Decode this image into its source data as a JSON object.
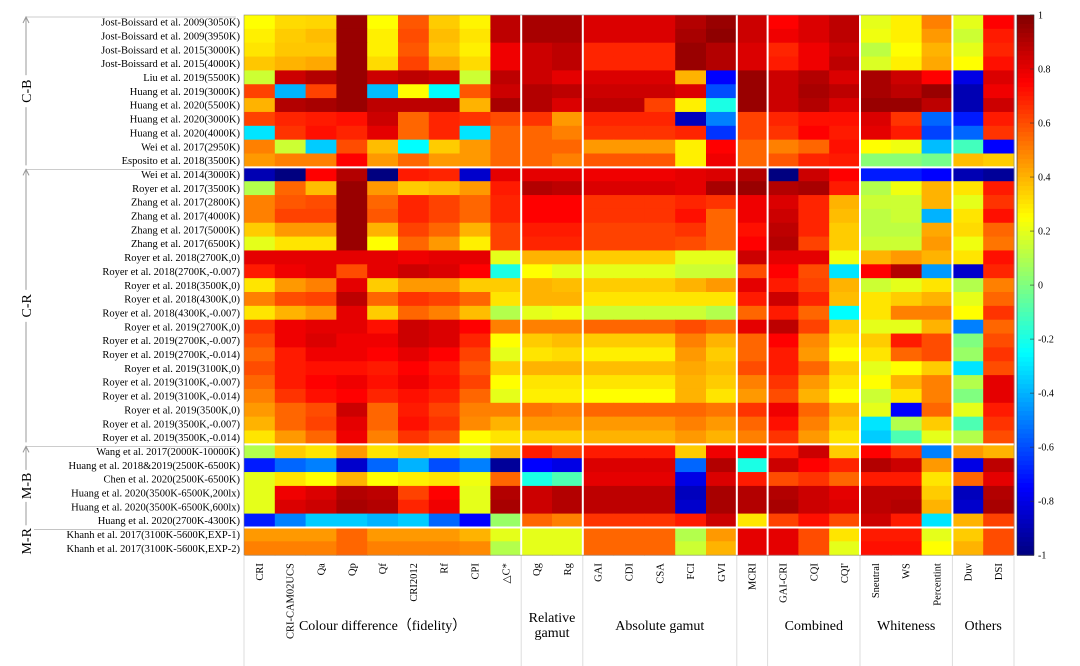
{
  "chart_data": {
    "type": "heatmap",
    "title": "",
    "rows": [
      "Jost-Boissard et al. 2009(3050K)",
      "Jost-Boissard et al. 2009(3950K)",
      "Jost-Boissard et al. 2015(3000K)",
      "Jost-Boissard et al. 2015(4000K)",
      "Liu et al. 2019(5500K)",
      "Huang et al. 2019(3000K)",
      "Huang et al. 2020(5500K)",
      "Huang et al. 2020(3000K)",
      "Huang et al. 2020(4000K)",
      "Wei et al. 2017(2950K)",
      "Esposito et al. 2018(3500K)",
      "Wei et al. 2014(3000K)",
      "Royer et al. 2017(3500K)",
      "Zhang et al. 2017(2800K)",
      "Zhang et al. 2017(4000K)",
      "Zhang et al. 2017(5000K)",
      "Zhang et al. 2017(6500K)",
      "Royer et al. 2018(2700K,0)",
      "Royer et al. 2018(2700K,-0.007)",
      "Royer et al. 2018(3500K,0)",
      "Royer et al. 2018(4300K,0)",
      "Royer et al. 2018(4300K,-0.007)",
      "Royer et al. 2019(2700K,0)",
      "Royer et al. 2019(2700K,-0.007)",
      "Royer et al. 2019(2700K,-0.014)",
      "Royer et al. 2019(3100K,0)",
      "Royer et al. 2019(3100K,-0.007)",
      "Royer et al. 2019(3100K,-0.014)",
      "Royer et al. 2019(3500K,0)",
      "Royer et al. 2019(3500K,-0.007)",
      "Royer et al. 2019(3500K,-0.014)",
      "Wang et al. 2017(2000K-10000K)",
      "Huang et al. 2018&2019(2500K-6500K)",
      "Chen et al. 2020(2500K-6500K)",
      "Huang et al. 2020(3500K-6500K,200lx)",
      "Huang et al. 2020(3500K-6500K,600lx)",
      "Huang et al. 2020(2700K-4300K)",
      "Khanh et al. 2017(3100K-5600K,EXP-1)",
      "Khanh et al. 2017(3100K-5600K,EXP-2)"
    ],
    "columns": [
      "CRI",
      "CRI-CAM02UCS",
      "Qa",
      "Qp",
      "Qf",
      "CRI2012",
      "Rf",
      "CPI",
      "△C*",
      "Qg",
      "Rg",
      "GAI",
      "CDI",
      "CSA",
      "FCI",
      "GVI",
      "MCRI",
      "GAI-CRI",
      "CQI",
      "CQI'",
      "Sneutral",
      "WS",
      "Percentint",
      "Duv",
      "DSI"
    ],
    "column_groups": [
      {
        "label": "Colour difference（fidelity）",
        "span": 9
      },
      {
        "label": "Relative gamut",
        "span": 2
      },
      {
        "label": "Absolute gamut",
        "span": 5
      },
      {
        "label": "",
        "span": 1
      },
      {
        "label": "Combined",
        "span": 3
      },
      {
        "label": "Whiteness",
        "span": 3
      },
      {
        "label": "Others",
        "span": 2
      }
    ],
    "row_groups": [
      {
        "label": "C-B",
        "span": 11
      },
      {
        "label": "C-R",
        "span": 20
      },
      {
        "label": "M-B",
        "span": 6
      },
      {
        "label": "M-R",
        "span": 2
      }
    ],
    "colorbar": {
      "min": -1,
      "max": 1,
      "ticks": [
        1,
        0.8,
        0.6,
        0.4,
        0.2,
        0,
        -0.2,
        -0.4,
        -0.6,
        -0.8,
        -1
      ],
      "colormap": "jet"
    },
    "values": [
      [
        0.25,
        0.32,
        0.33,
        0.95,
        0.25,
        0.58,
        0.35,
        0.27,
        0.88,
        0.92,
        0.92,
        0.82,
        0.82,
        0.82,
        0.9,
        0.95,
        0.85,
        0.75,
        0.82,
        0.88,
        0.2,
        0.28,
        0.5,
        0.2,
        0.75
      ],
      [
        0.28,
        0.35,
        0.38,
        0.95,
        0.28,
        0.6,
        0.38,
        0.3,
        0.88,
        0.92,
        0.92,
        0.82,
        0.82,
        0.82,
        0.92,
        0.97,
        0.85,
        0.78,
        0.82,
        0.88,
        0.22,
        0.28,
        0.45,
        0.15,
        0.7
      ],
      [
        0.3,
        0.36,
        0.36,
        0.95,
        0.28,
        0.58,
        0.36,
        0.28,
        0.78,
        0.85,
        0.88,
        0.68,
        0.68,
        0.68,
        0.95,
        0.9,
        0.82,
        0.68,
        0.78,
        0.85,
        0.12,
        0.25,
        0.4,
        0.2,
        0.68
      ],
      [
        0.36,
        0.4,
        0.42,
        0.95,
        0.32,
        0.62,
        0.42,
        0.32,
        0.78,
        0.85,
        0.88,
        0.68,
        0.68,
        0.68,
        0.95,
        0.9,
        0.82,
        0.7,
        0.78,
        0.88,
        0.18,
        0.28,
        0.42,
        0.25,
        0.72
      ],
      [
        0.15,
        0.85,
        0.9,
        0.95,
        0.85,
        0.88,
        0.85,
        0.15,
        0.88,
        0.85,
        0.8,
        0.82,
        0.82,
        0.82,
        0.4,
        -0.75,
        0.95,
        0.85,
        0.9,
        0.82,
        0.92,
        0.85,
        0.75,
        -0.8,
        0.82
      ],
      [
        0.62,
        -0.4,
        0.62,
        0.95,
        -0.38,
        0.25,
        -0.25,
        0.58,
        0.85,
        0.9,
        0.88,
        0.85,
        0.85,
        0.85,
        0.82,
        -0.6,
        0.95,
        0.85,
        0.92,
        0.88,
        0.92,
        0.88,
        0.95,
        -0.9,
        0.78
      ],
      [
        0.4,
        0.9,
        0.92,
        0.95,
        0.88,
        0.88,
        0.88,
        0.4,
        0.92,
        0.9,
        0.82,
        0.88,
        0.88,
        0.62,
        0.28,
        -0.2,
        0.95,
        0.85,
        0.9,
        0.82,
        0.95,
        0.95,
        0.88,
        -0.9,
        0.85
      ],
      [
        0.62,
        0.68,
        0.7,
        0.72,
        0.85,
        0.55,
        0.68,
        0.65,
        0.6,
        0.65,
        0.45,
        0.68,
        0.68,
        0.68,
        -0.88,
        -0.5,
        0.62,
        0.68,
        0.72,
        0.72,
        0.82,
        0.65,
        -0.55,
        -0.7,
        0.7
      ],
      [
        -0.3,
        0.65,
        0.72,
        0.68,
        0.8,
        0.55,
        0.68,
        -0.3,
        0.55,
        0.55,
        0.5,
        0.65,
        0.65,
        0.65,
        0.68,
        -0.65,
        0.62,
        0.65,
        0.75,
        0.7,
        0.8,
        0.7,
        -0.62,
        -0.55,
        0.65
      ],
      [
        0.5,
        0.15,
        -0.35,
        0.6,
        0.38,
        -0.25,
        0.35,
        0.45,
        0.55,
        0.55,
        0.55,
        0.45,
        0.45,
        0.45,
        0.28,
        0.75,
        0.55,
        0.5,
        0.55,
        0.72,
        0.25,
        0.22,
        -0.38,
        -0.12,
        -0.75
      ],
      [
        0.45,
        0.5,
        0.5,
        0.75,
        0.45,
        0.55,
        0.45,
        0.45,
        0.55,
        0.55,
        0.5,
        0.58,
        0.58,
        0.58,
        0.28,
        0.78,
        0.55,
        0.58,
        0.68,
        0.7,
        0.02,
        0.02,
        -0.02,
        0.38,
        0.35
      ],
      [
        -0.9,
        -1.0,
        0.75,
        0.9,
        -1.0,
        0.7,
        0.68,
        -0.85,
        0.8,
        0.8,
        0.8,
        0.78,
        0.78,
        0.78,
        0.8,
        0.82,
        0.9,
        -1.0,
        0.85,
        0.75,
        -0.7,
        -0.7,
        -0.75,
        -0.9,
        -0.95
      ],
      [
        0.1,
        0.55,
        0.38,
        0.95,
        0.45,
        0.35,
        0.38,
        0.45,
        0.7,
        0.9,
        0.88,
        0.82,
        0.82,
        0.82,
        0.8,
        0.92,
        0.95,
        0.9,
        0.92,
        0.7,
        0.1,
        0.22,
        0.4,
        0.3,
        0.7
      ],
      [
        0.5,
        0.58,
        0.6,
        0.95,
        0.55,
        0.68,
        0.62,
        0.55,
        0.68,
        0.75,
        0.75,
        0.65,
        0.65,
        0.65,
        0.68,
        0.65,
        0.78,
        0.82,
        0.68,
        0.4,
        0.15,
        0.15,
        0.4,
        0.2,
        0.65
      ],
      [
        0.5,
        0.62,
        0.62,
        0.95,
        0.58,
        0.68,
        0.62,
        0.55,
        0.68,
        0.75,
        0.75,
        0.65,
        0.65,
        0.65,
        0.72,
        0.55,
        0.78,
        0.85,
        0.68,
        0.38,
        0.12,
        0.15,
        -0.4,
        0.3,
        0.72
      ],
      [
        0.35,
        0.45,
        0.45,
        0.95,
        0.4,
        0.62,
        0.55,
        0.4,
        0.62,
        0.7,
        0.7,
        0.62,
        0.62,
        0.62,
        0.65,
        0.55,
        0.72,
        0.88,
        0.68,
        0.35,
        0.12,
        0.12,
        0.42,
        0.32,
        0.55
      ],
      [
        0.2,
        0.3,
        0.3,
        0.95,
        0.25,
        0.55,
        0.45,
        0.28,
        0.62,
        0.68,
        0.68,
        0.62,
        0.62,
        0.62,
        0.6,
        0.55,
        0.75,
        0.9,
        0.62,
        0.35,
        0.15,
        0.15,
        0.45,
        0.22,
        0.52
      ],
      [
        0.8,
        0.8,
        0.8,
        0.8,
        0.8,
        0.78,
        0.8,
        0.8,
        0.2,
        0.4,
        0.4,
        0.35,
        0.35,
        0.35,
        0.2,
        0.2,
        0.85,
        0.8,
        0.8,
        0.22,
        0.4,
        0.45,
        0.4,
        0.3,
        0.72
      ],
      [
        0.7,
        0.78,
        0.8,
        0.6,
        0.8,
        0.85,
        0.82,
        0.75,
        -0.2,
        0.25,
        0.2,
        0.2,
        0.2,
        0.2,
        0.15,
        0.15,
        0.6,
        0.75,
        0.6,
        -0.3,
        0.75,
        0.9,
        -0.45,
        -0.85,
        0.68
      ],
      [
        0.3,
        0.45,
        0.5,
        0.8,
        0.35,
        0.45,
        0.45,
        0.35,
        0.35,
        0.4,
        0.38,
        0.35,
        0.35,
        0.35,
        0.4,
        0.45,
        0.8,
        0.7,
        0.62,
        0.4,
        0.15,
        0.2,
        0.3,
        0.1,
        0.5
      ],
      [
        0.5,
        0.6,
        0.62,
        0.88,
        0.55,
        0.65,
        0.62,
        0.55,
        0.3,
        0.4,
        0.4,
        0.3,
        0.3,
        0.3,
        0.3,
        0.3,
        0.7,
        0.85,
        0.68,
        0.38,
        0.3,
        0.35,
        0.4,
        0.2,
        0.55
      ],
      [
        0.3,
        0.4,
        0.45,
        0.8,
        0.35,
        0.55,
        0.5,
        0.38,
        0.1,
        0.2,
        0.22,
        0.15,
        0.15,
        0.15,
        0.15,
        0.1,
        0.55,
        0.7,
        0.55,
        -0.25,
        0.3,
        0.5,
        0.5,
        0.25,
        0.65
      ],
      [
        0.65,
        0.78,
        0.8,
        0.8,
        0.72,
        0.85,
        0.82,
        0.75,
        0.5,
        0.5,
        0.5,
        0.55,
        0.55,
        0.55,
        0.6,
        0.55,
        0.8,
        0.88,
        0.62,
        0.35,
        0.2,
        0.2,
        0.4,
        -0.5,
        0.55
      ],
      [
        0.6,
        0.78,
        0.82,
        0.78,
        0.78,
        0.85,
        0.82,
        0.68,
        0.25,
        0.35,
        0.38,
        0.35,
        0.35,
        0.35,
        0.5,
        0.4,
        0.55,
        0.75,
        0.48,
        0.3,
        0.35,
        0.7,
        0.6,
        0.0,
        0.6
      ],
      [
        0.55,
        0.7,
        0.78,
        0.78,
        0.75,
        0.8,
        0.75,
        0.62,
        0.2,
        0.3,
        0.32,
        0.28,
        0.28,
        0.28,
        0.45,
        0.35,
        0.55,
        0.7,
        0.45,
        0.25,
        0.3,
        0.55,
        0.6,
        0.05,
        0.65
      ],
      [
        0.6,
        0.7,
        0.72,
        0.72,
        0.7,
        0.75,
        0.7,
        0.58,
        0.35,
        0.4,
        0.4,
        0.38,
        0.38,
        0.38,
        0.42,
        0.38,
        0.6,
        0.7,
        0.55,
        0.35,
        0.2,
        0.25,
        0.35,
        -0.3,
        0.6
      ],
      [
        0.55,
        0.7,
        0.75,
        0.78,
        0.72,
        0.78,
        0.72,
        0.62,
        0.25,
        0.3,
        0.3,
        0.3,
        0.3,
        0.3,
        0.4,
        0.35,
        0.5,
        0.65,
        0.45,
        0.3,
        0.25,
        0.4,
        0.5,
        0.1,
        0.8
      ],
      [
        0.5,
        0.65,
        0.72,
        0.75,
        0.68,
        0.72,
        0.68,
        0.55,
        0.2,
        0.28,
        0.28,
        0.25,
        0.25,
        0.25,
        0.4,
        0.3,
        0.45,
        0.6,
        0.4,
        0.25,
        0.15,
        0.3,
        0.5,
        0.0,
        0.8
      ],
      [
        0.45,
        0.55,
        0.6,
        0.85,
        0.55,
        0.7,
        0.62,
        0.5,
        0.5,
        0.52,
        0.5,
        0.55,
        0.55,
        0.55,
        0.55,
        0.52,
        0.65,
        0.78,
        0.55,
        0.4,
        0.2,
        -0.75,
        0.55,
        0.2,
        0.7
      ],
      [
        0.4,
        0.55,
        0.62,
        0.8,
        0.55,
        0.72,
        0.65,
        0.48,
        0.4,
        0.45,
        0.45,
        0.45,
        0.45,
        0.45,
        0.5,
        0.45,
        0.55,
        0.72,
        0.5,
        0.35,
        -0.3,
        0.1,
        0.35,
        -0.1,
        0.65
      ],
      [
        0.3,
        0.45,
        0.55,
        0.78,
        0.5,
        0.65,
        0.58,
        0.25,
        0.3,
        0.35,
        0.35,
        0.4,
        0.4,
        0.4,
        0.45,
        0.4,
        0.5,
        0.65,
        0.45,
        0.3,
        -0.35,
        -0.1,
        0.2,
        0.1,
        0.6
      ],
      [
        0.1,
        0.35,
        0.3,
        0.45,
        0.3,
        0.35,
        0.3,
        0.2,
        0.4,
        0.7,
        0.62,
        0.7,
        0.7,
        0.7,
        0.35,
        0.78,
        0.75,
        0.7,
        0.85,
        0.35,
        0.75,
        0.65,
        -0.5,
        0.45,
        0.4
      ],
      [
        -0.7,
        -0.55,
        -0.5,
        -0.85,
        -0.55,
        -0.4,
        -0.6,
        -0.5,
        -0.95,
        -0.75,
        -0.8,
        0.82,
        0.82,
        0.82,
        -0.55,
        0.9,
        -0.2,
        0.85,
        0.75,
        0.68,
        0.9,
        0.85,
        0.45,
        -0.8,
        0.88
      ],
      [
        0.2,
        0.3,
        0.25,
        0.4,
        0.25,
        0.28,
        0.3,
        0.22,
        0.55,
        -0.2,
        -0.1,
        0.8,
        0.8,
        0.8,
        -0.8,
        0.82,
        0.7,
        0.6,
        0.65,
        0.55,
        0.7,
        0.7,
        0.3,
        0.55,
        0.8
      ],
      [
        0.2,
        0.78,
        0.82,
        0.9,
        0.88,
        0.62,
        0.75,
        0.2,
        0.9,
        0.85,
        0.9,
        0.88,
        0.88,
        0.88,
        -0.88,
        0.92,
        0.9,
        0.9,
        0.85,
        0.8,
        0.88,
        0.88,
        0.35,
        -0.88,
        0.9
      ],
      [
        0.2,
        0.82,
        0.85,
        0.92,
        0.9,
        0.68,
        0.78,
        0.2,
        0.92,
        0.85,
        0.9,
        0.88,
        0.88,
        0.88,
        -0.85,
        0.92,
        0.9,
        0.92,
        0.85,
        0.82,
        0.88,
        0.9,
        0.4,
        -0.85,
        0.92
      ],
      [
        -0.7,
        -0.5,
        -0.35,
        -0.35,
        -0.4,
        -0.35,
        -0.55,
        -0.75,
        0.05,
        0.55,
        0.5,
        0.65,
        0.65,
        0.65,
        0.7,
        0.85,
        0.3,
        0.62,
        0.72,
        0.6,
        0.85,
        0.7,
        -0.3,
        0.4,
        0.62
      ],
      [
        0.45,
        0.45,
        0.45,
        0.55,
        0.45,
        0.45,
        0.45,
        0.4,
        0.2,
        0.2,
        0.2,
        0.55,
        0.55,
        0.55,
        0.1,
        0.45,
        0.8,
        0.8,
        0.6,
        0.3,
        0.7,
        0.7,
        0.2,
        0.35,
        0.6
      ],
      [
        0.5,
        0.5,
        0.5,
        0.55,
        0.5,
        0.5,
        0.5,
        0.48,
        0.1,
        0.2,
        0.2,
        0.55,
        0.55,
        0.55,
        0.15,
        0.4,
        0.8,
        0.8,
        0.6,
        0.2,
        0.72,
        0.72,
        0.25,
        0.4,
        0.6
      ]
    ]
  }
}
